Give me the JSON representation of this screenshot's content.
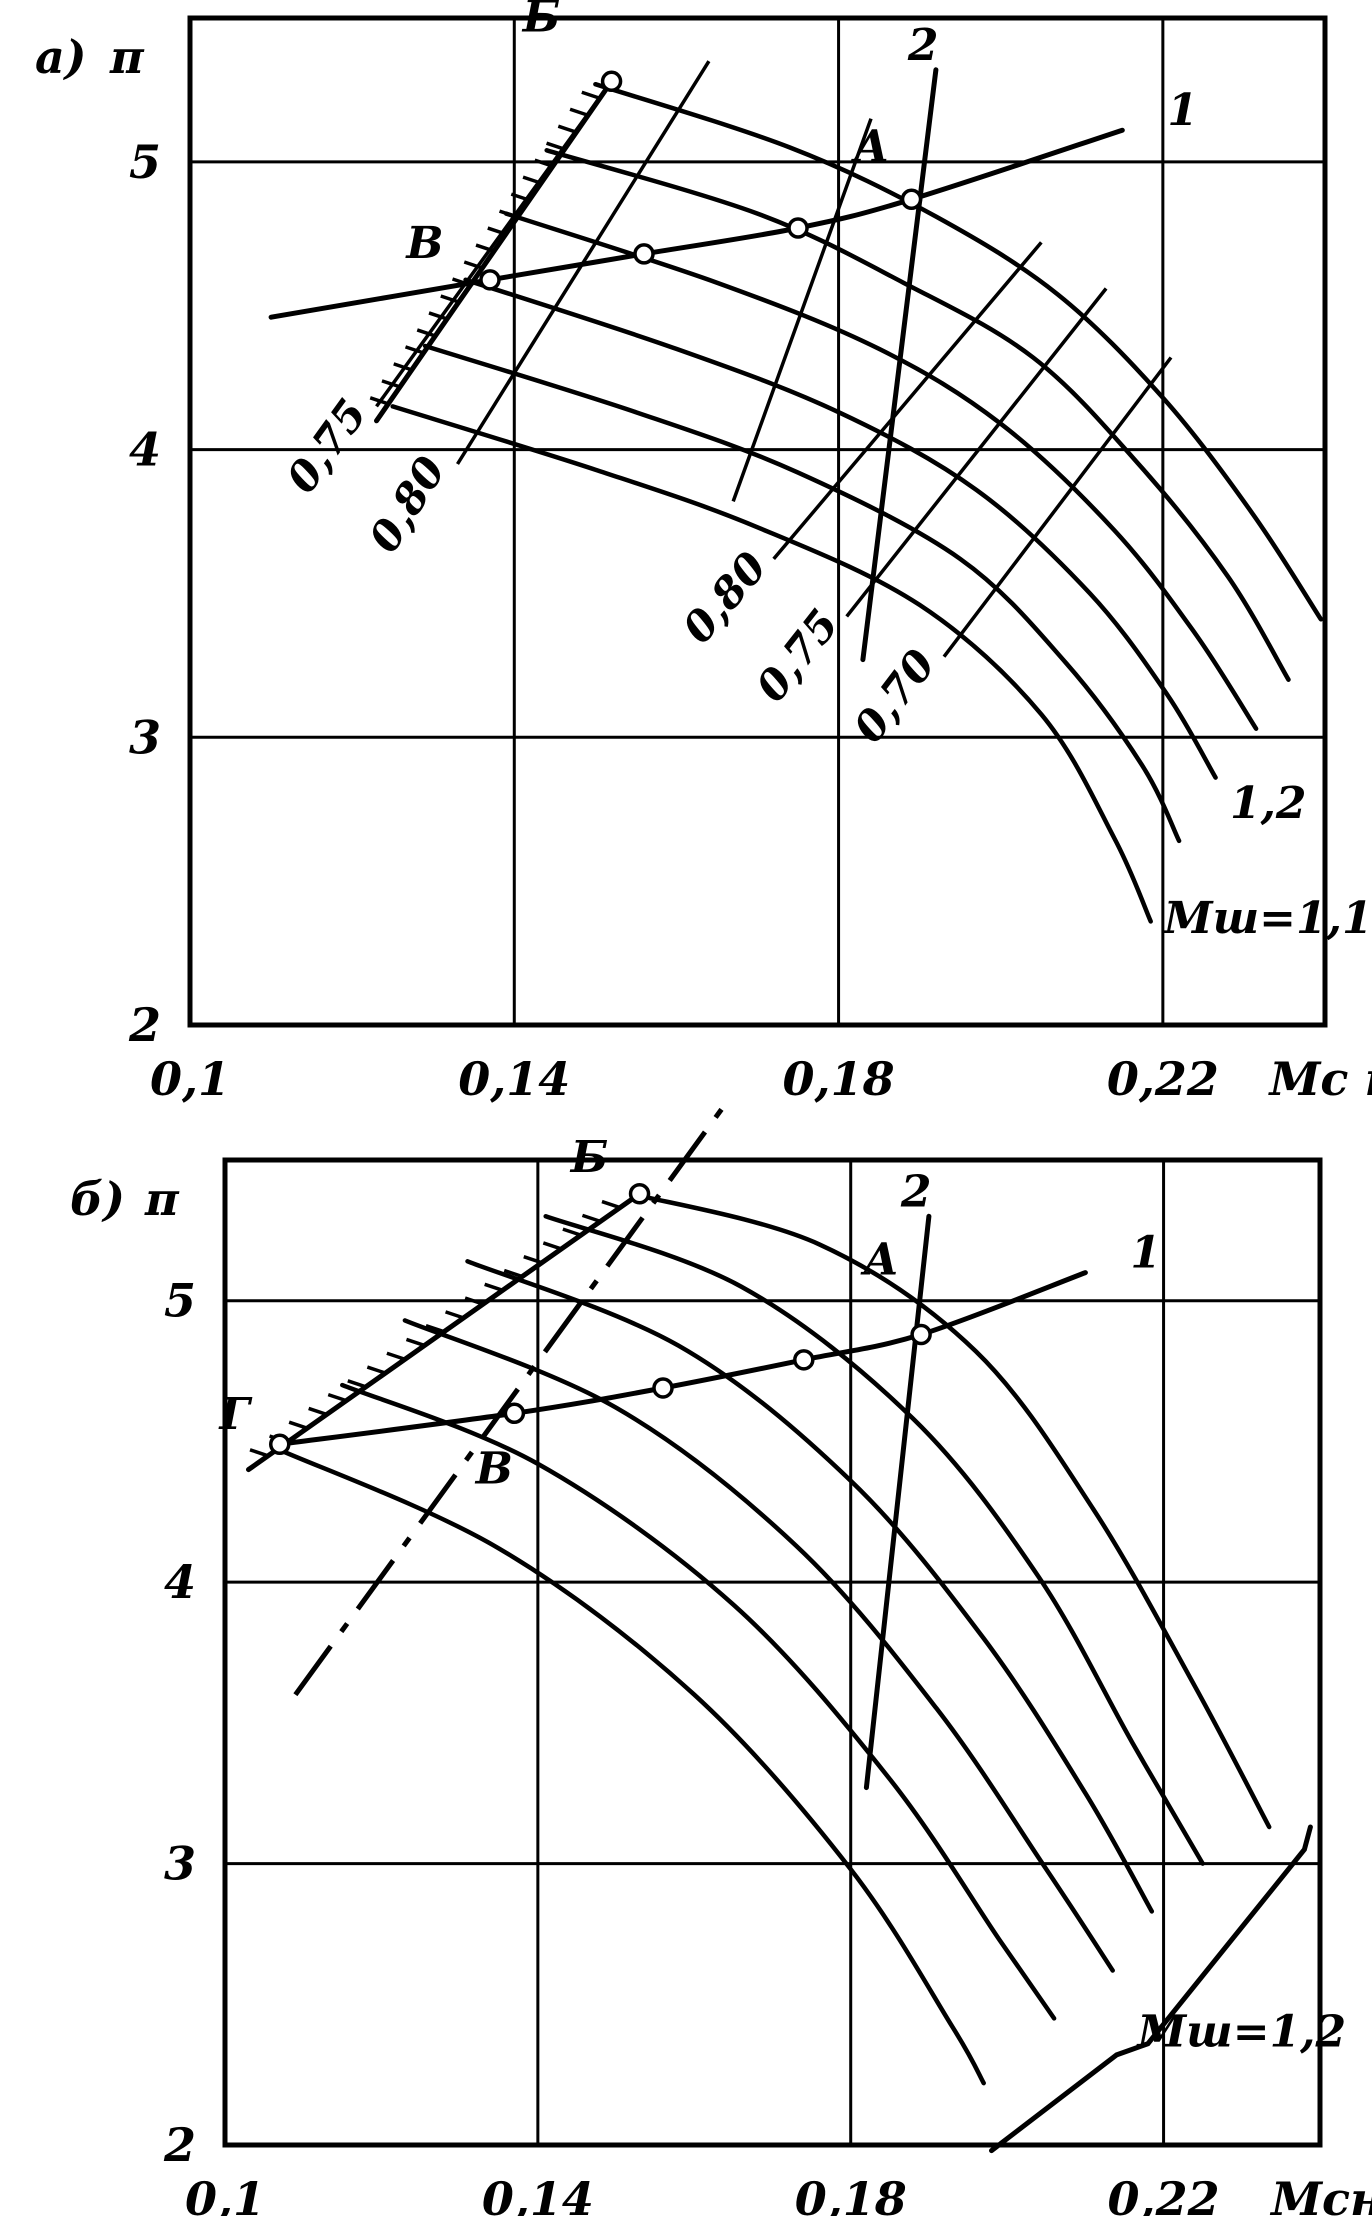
{
  "chart_data": [
    {
      "type": "line",
      "panel_label": "а)",
      "ylabel": "π",
      "xlabel": "Мс н.у",
      "x_ticks": [
        "0,1",
        "0,14",
        "0,18",
        "0,22"
      ],
      "y_ticks": [
        "2",
        "3",
        "4",
        "5"
      ],
      "xlim": [
        0.1,
        0.24
      ],
      "ylim": [
        2,
        5.5
      ],
      "grid": true,
      "speed_label": "Мш=1,1",
      "speed_label_top": "1,2",
      "speed_lines": [
        {
          "x": [
            0.125,
            0.15,
            0.17,
            0.19,
            0.205,
            0.214,
            0.2185
          ],
          "y": [
            4.15,
            3.93,
            3.73,
            3.46,
            3.08,
            2.65,
            2.36
          ]
        },
        {
          "x": [
            0.129,
            0.155,
            0.175,
            0.195,
            0.208,
            0.2175,
            0.222
          ],
          "y": [
            4.36,
            4.13,
            3.92,
            3.62,
            3.26,
            2.9,
            2.64
          ]
        },
        {
          "x": [
            0.134,
            0.16,
            0.18,
            0.197,
            0.211,
            0.2205,
            0.2265
          ],
          "y": [
            4.59,
            4.35,
            4.13,
            3.86,
            3.5,
            3.15,
            2.86
          ]
        },
        {
          "x": [
            0.139,
            0.165,
            0.185,
            0.2,
            0.214,
            0.224,
            0.2315
          ],
          "y": [
            4.82,
            4.58,
            4.35,
            4.09,
            3.72,
            3.36,
            3.03
          ]
        },
        {
          "x": [
            0.144,
            0.17,
            0.188,
            0.204,
            0.217,
            0.228,
            0.2355
          ],
          "y": [
            5.04,
            4.82,
            4.58,
            4.32,
            3.95,
            3.56,
            3.2
          ]
        },
        {
          "x": [
            0.15,
            0.174,
            0.192,
            0.207,
            0.22,
            0.231,
            0.2395
          ],
          "y": [
            5.27,
            5.05,
            4.81,
            4.54,
            4.18,
            3.78,
            3.41
          ]
        }
      ],
      "efficiency_lines": [
        {
          "label": "0,75",
          "x": [
            0.123,
            0.152
          ],
          "y": [
            4.15,
            5.28
          ]
        },
        {
          "label": "0,80",
          "x": [
            0.133,
            0.164
          ],
          "y": [
            3.95,
            5.35
          ]
        },
        {
          "x": [
            0.167,
            0.184
          ],
          "y": [
            3.82,
            5.15
          ]
        },
        {
          "label": "0,80",
          "x": [
            0.172,
            0.205
          ],
          "y": [
            3.62,
            4.72
          ]
        },
        {
          "label": "0,75",
          "x": [
            0.181,
            0.213
          ],
          "y": [
            3.42,
            4.56
          ]
        },
        {
          "label": "0,70",
          "x": [
            0.193,
            0.221
          ],
          "y": [
            3.28,
            4.32
          ]
        }
      ],
      "operating_line_1": {
        "label": "1",
        "x": [
          0.11,
          0.137,
          0.156,
          0.175,
          0.189,
          0.215
        ],
        "y": [
          4.46,
          4.59,
          4.68,
          4.77,
          4.87,
          5.11
        ]
      },
      "operating_line_2": {
        "label": "2",
        "x": [
          0.183,
          0.192
        ],
        "y": [
          3.27,
          5.32
        ]
      },
      "surge_boundary": {
        "x": [
          0.123,
          0.152
        ],
        "y": [
          4.1,
          5.28
        ]
      },
      "points": [
        {
          "label": "В",
          "x": 0.137,
          "y": 4.59
        },
        {
          "label": "",
          "x": 0.156,
          "y": 4.68
        },
        {
          "label": "",
          "x": 0.175,
          "y": 4.77
        },
        {
          "label": "А",
          "x": 0.189,
          "y": 4.87
        },
        {
          "label": "Б",
          "x": 0.152,
          "y": 5.28
        }
      ]
    },
    {
      "type": "line",
      "panel_label": "б)",
      "ylabel": "π",
      "xlabel": "Мсн.у",
      "x_ticks": [
        "0,1",
        "0,14",
        "0,18",
        "0,22"
      ],
      "y_ticks": [
        "2",
        "3",
        "4",
        "5"
      ],
      "xlim": [
        0.1,
        0.24
      ],
      "ylim": [
        2,
        5.5
      ],
      "grid": true,
      "speed_label": "Мш=1,2",
      "speed_lines": [
        {
          "x": [
            0.107,
            0.135,
            0.16,
            0.18,
            0.193,
            0.197
          ],
          "y": [
            4.47,
            4.12,
            3.6,
            2.98,
            2.42,
            2.22
          ]
        },
        {
          "x": [
            0.115,
            0.14,
            0.165,
            0.185,
            0.199,
            0.206
          ],
          "y": [
            4.7,
            4.42,
            3.92,
            3.3,
            2.73,
            2.45
          ]
        },
        {
          "x": [
            0.123,
            0.15,
            0.173,
            0.191,
            0.205,
            0.2135
          ],
          "y": [
            4.93,
            4.62,
            4.13,
            3.55,
            2.98,
            2.62
          ]
        },
        {
          "x": [
            0.131,
            0.158,
            0.18,
            0.197,
            0.21,
            0.2185
          ],
          "y": [
            5.14,
            4.84,
            4.36,
            3.8,
            3.25,
            2.83
          ]
        },
        {
          "x": [
            0.141,
            0.166,
            0.188,
            0.204,
            0.216,
            0.225
          ],
          "y": [
            5.3,
            5.05,
            4.58,
            4.02,
            3.43,
            3.0
          ]
        },
        {
          "x": [
            0.152,
            0.176,
            0.196,
            0.211,
            0.224,
            0.2335
          ],
          "y": [
            5.38,
            5.2,
            4.82,
            4.26,
            3.63,
            3.13
          ]
        }
      ],
      "operating_line_1": {
        "label": "1",
        "x": [
          0.107,
          0.137,
          0.156,
          0.174,
          0.189,
          0.21
        ],
        "y": [
          4.49,
          4.6,
          4.69,
          4.79,
          4.88,
          5.1
        ]
      },
      "operating_line_2": {
        "label": "2",
        "x": [
          0.182,
          0.19
        ],
        "y": [
          3.27,
          5.3
        ]
      },
      "surge_boundary": {
        "x": [
          0.103,
          0.153
        ],
        "y": [
          4.4,
          5.38
        ]
      },
      "dashed_line": {
        "x": [
          0.109,
          0.164
        ],
        "y": [
          3.6,
          5.7
        ]
      },
      "points": [
        {
          "label": "Г",
          "x": 0.107,
          "y": 4.49
        },
        {
          "label": "В",
          "x": 0.137,
          "y": 4.6
        },
        {
          "label": "",
          "x": 0.156,
          "y": 4.69
        },
        {
          "label": "",
          "x": 0.174,
          "y": 4.79
        },
        {
          "label": "А",
          "x": 0.189,
          "y": 4.88
        },
        {
          "label": "Б",
          "x": 0.153,
          "y": 5.38
        }
      ]
    }
  ]
}
